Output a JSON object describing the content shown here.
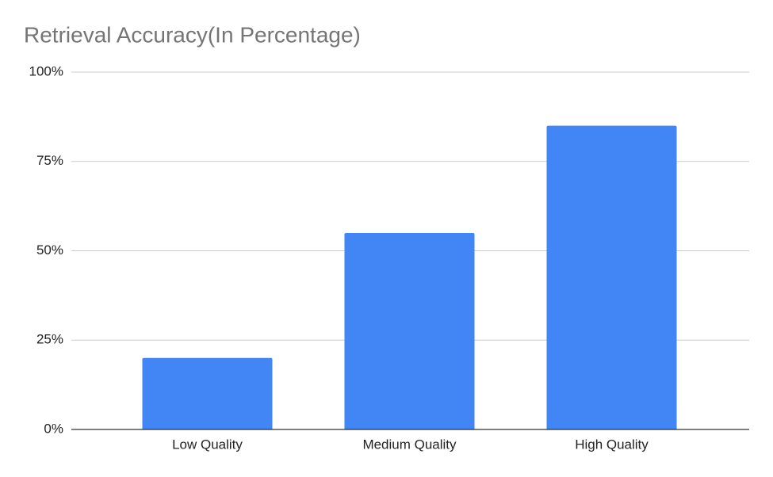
{
  "chart_data": {
    "type": "bar",
    "title": "Retrieval Accuracy(In Percentage)",
    "categories": [
      "Low Quality",
      "Medium Quality",
      "High Quality"
    ],
    "values": [
      20,
      55,
      85
    ],
    "color": "#4285f4",
    "ylim": [
      0,
      100
    ],
    "yticks": [
      {
        "value": 0,
        "label": "0%"
      },
      {
        "value": 25,
        "label": "25%"
      },
      {
        "value": 50,
        "label": "50%"
      },
      {
        "value": 75,
        "label": "75%"
      },
      {
        "value": 100,
        "label": "100%"
      }
    ],
    "grid": true
  }
}
